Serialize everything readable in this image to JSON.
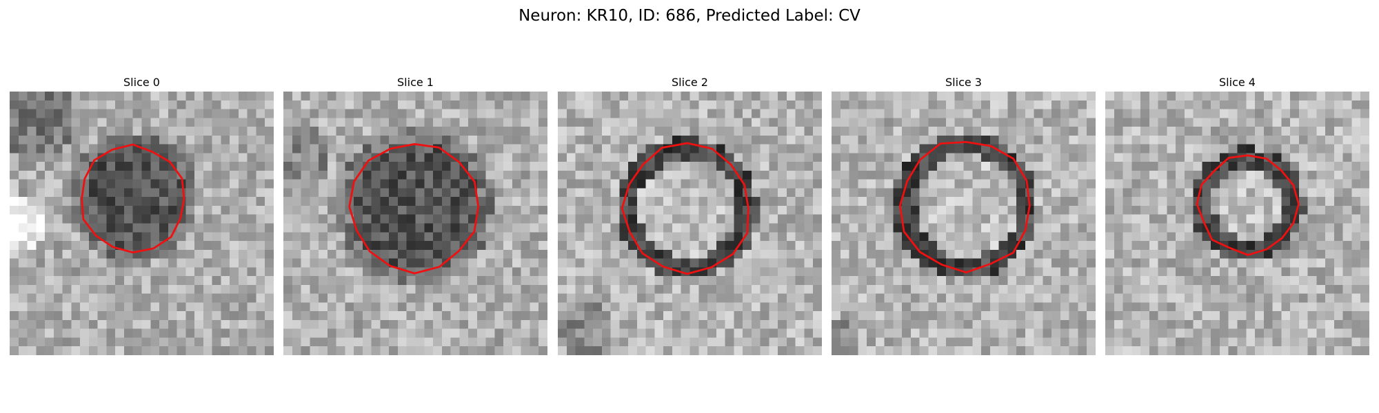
{
  "figure": {
    "title": "Neuron: KR10, ID: 686, Predicted Label: CV"
  },
  "outline_color": "#ee1111",
  "slices": [
    {
      "title": "Slice 0",
      "center_tone": "dark"
    },
    {
      "title": "Slice 1",
      "center_tone": "dark"
    },
    {
      "title": "Slice 2",
      "center_tone": "light"
    },
    {
      "title": "Slice 3",
      "center_tone": "light"
    },
    {
      "title": "Slice 4",
      "center_tone": "light"
    }
  ]
}
